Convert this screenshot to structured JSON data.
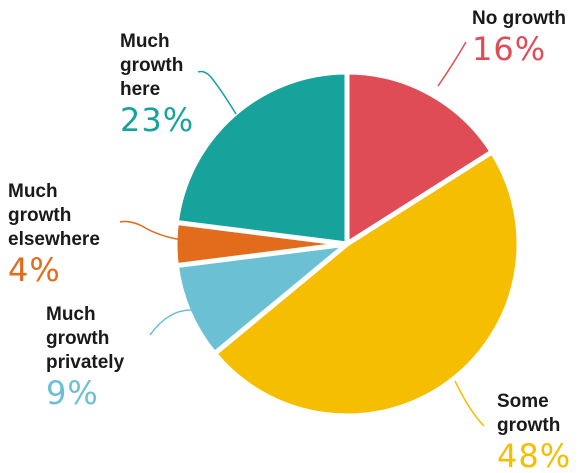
{
  "chart_data": {
    "type": "pie",
    "slices": [
      {
        "key": "no",
        "label_lines": [
          "No growth"
        ],
        "value_label": "16%",
        "value": 16,
        "color": "#E04C55"
      },
      {
        "key": "some",
        "label_lines": [
          "Some",
          "growth"
        ],
        "value_label": "48%",
        "value": 48,
        "color": "#F6BE00"
      },
      {
        "key": "privately",
        "label_lines": [
          "Much",
          "growth",
          "privately"
        ],
        "value_label": "9%",
        "value": 9,
        "color": "#6CC0D4"
      },
      {
        "key": "elsewhere",
        "label_lines": [
          "Much",
          "growth",
          "elsewhere"
        ],
        "value_label": "4%",
        "value": 4,
        "color": "#E26C1B"
      },
      {
        "key": "here",
        "label_lines": [
          "Much",
          "growth",
          "here"
        ],
        "value_label": "23%",
        "value": 23,
        "color": "#17A39B"
      }
    ],
    "start_angle_deg": -90,
    "direction": "clockwise",
    "legend": "none"
  }
}
